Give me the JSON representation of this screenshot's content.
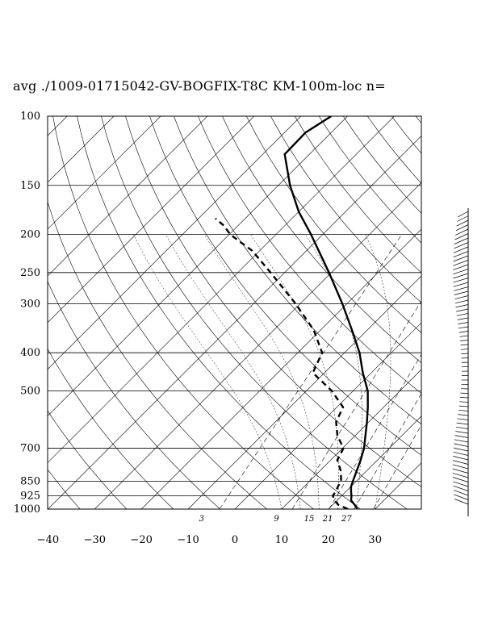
{
  "chart_data": {
    "type": "line",
    "title": "avg ./1009-01715042-GV-BOGFIX-T8C KM-100m-loc n=",
    "y_scale": "log",
    "y_reversed": true,
    "ylim": [
      1000,
      100
    ],
    "xlim": [
      -40,
      40
    ],
    "pressure_levels": [
      100,
      150,
      200,
      250,
      300,
      400,
      500,
      700,
      850,
      925,
      1000
    ],
    "pressure_tick_labels": [
      "100",
      "150",
      "200",
      "250",
      "300",
      "400",
      "500",
      "700",
      "850",
      "925",
      "1000"
    ],
    "temperature_ticks": [
      -40,
      -30,
      -20,
      -10,
      0,
      10,
      20,
      30
    ],
    "temperature_tick_labels": [
      "−40",
      "−30",
      "−20",
      "−10",
      "0",
      "10",
      "20",
      "30"
    ],
    "mixing_ratio_labels": [
      {
        "text": "3",
        "t": -4
      },
      {
        "text": "9",
        "t": 12
      },
      {
        "text": "15",
        "t": 19
      },
      {
        "text": "21",
        "t": 23
      },
      {
        "text": "27",
        "t": 27
      }
    ],
    "series": [
      {
        "role": "temperature",
        "style": "solid",
        "points": [
          {
            "p": 1000,
            "t": 26.2
          },
          {
            "p": 975,
            "t": 24.7
          },
          {
            "p": 950,
            "t": 23.0
          },
          {
            "p": 925,
            "t": 22.1
          },
          {
            "p": 900,
            "t": 21.0
          },
          {
            "p": 875,
            "t": 20.0
          },
          {
            "p": 850,
            "t": 19.3
          },
          {
            "p": 800,
            "t": 17.9
          },
          {
            "p": 750,
            "t": 16.4
          },
          {
            "p": 700,
            "t": 14.6
          },
          {
            "p": 650,
            "t": 12.2
          },
          {
            "p": 600,
            "t": 9.6
          },
          {
            "p": 550,
            "t": 6.6
          },
          {
            "p": 500,
            "t": 3.1
          },
          {
            "p": 450,
            "t": -1.8
          },
          {
            "p": 400,
            "t": -6.8
          },
          {
            "p": 350,
            "t": -13.3
          },
          {
            "p": 300,
            "t": -21.0
          },
          {
            "p": 250,
            "t": -30.5
          },
          {
            "p": 200,
            "t": -42.5
          },
          {
            "p": 175,
            "t": -50.0
          },
          {
            "p": 150,
            "t": -57.5
          },
          {
            "p": 125,
            "t": -65.3
          },
          {
            "p": 110,
            "t": -65.5
          },
          {
            "p": 100,
            "t": -63.5
          }
        ]
      },
      {
        "role": "dewpoint",
        "style": "dashed",
        "points": [
          {
            "p": 1000,
            "t": 24.2
          },
          {
            "p": 975,
            "t": 21.2
          },
          {
            "p": 950,
            "t": 19.4
          },
          {
            "p": 925,
            "t": 18.1
          },
          {
            "p": 900,
            "t": 17.8
          },
          {
            "p": 875,
            "t": 17.2
          },
          {
            "p": 850,
            "t": 16.8
          },
          {
            "p": 800,
            "t": 14.5
          },
          {
            "p": 750,
            "t": 11.4
          },
          {
            "p": 700,
            "t": 10.2
          },
          {
            "p": 650,
            "t": 6.2
          },
          {
            "p": 600,
            "t": 3.0
          },
          {
            "p": 550,
            "t": 1.3
          },
          {
            "p": 500,
            "t": -4.6
          },
          {
            "p": 450,
            "t": -12.5
          },
          {
            "p": 400,
            "t": -14.8
          },
          {
            "p": 350,
            "t": -21.5
          },
          {
            "p": 300,
            "t": -31.0
          },
          {
            "p": 250,
            "t": -43.0
          },
          {
            "p": 220,
            "t": -51.6
          },
          {
            "p": 200,
            "t": -59.8
          },
          {
            "p": 190,
            "t": -63.0
          },
          {
            "p": 182,
            "t": -66.4
          }
        ]
      }
    ]
  }
}
